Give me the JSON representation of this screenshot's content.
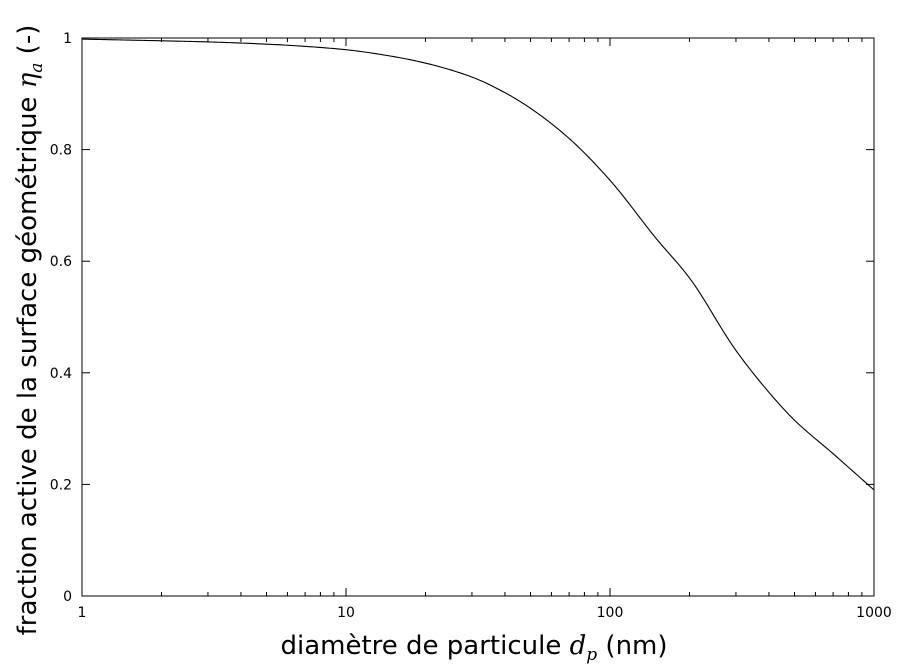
{
  "chart_data": {
    "type": "line",
    "xscale": "log",
    "xlim": [
      1,
      1000
    ],
    "ylim": [
      0,
      1
    ],
    "xticks": [
      1,
      10,
      100,
      1000
    ],
    "xtick_labels": [
      "1",
      "10",
      "100",
      "1000"
    ],
    "yticks": [
      0,
      0.2,
      0.4,
      0.6,
      0.8,
      1
    ],
    "ytick_labels": [
      "0",
      "0.2",
      "0.4",
      "0.6",
      "0.8",
      "1"
    ],
    "xlabel": {
      "text": "diamètre de particule ",
      "symbol": "d",
      "subscript": "p",
      "unit": " (nm)"
    },
    "ylabel": {
      "text": "fraction active de la surface géométrique ",
      "symbol": "η",
      "subscript": "a",
      "unit": " (-)"
    },
    "grid": false,
    "legend": "none",
    "line_color": "#000000",
    "series": [
      {
        "x": [
          1,
          2,
          3,
          5,
          7,
          10,
          15,
          20,
          30,
          40,
          50,
          70,
          100,
          150,
          200,
          300,
          400,
          500,
          700,
          1000
        ],
        "y": [
          0.998,
          0.995,
          0.993,
          0.989,
          0.985,
          0.979,
          0.967,
          0.955,
          0.93,
          0.902,
          0.874,
          0.82,
          0.745,
          0.64,
          0.57,
          0.44,
          0.365,
          0.315,
          0.255,
          0.19
        ]
      }
    ]
  }
}
